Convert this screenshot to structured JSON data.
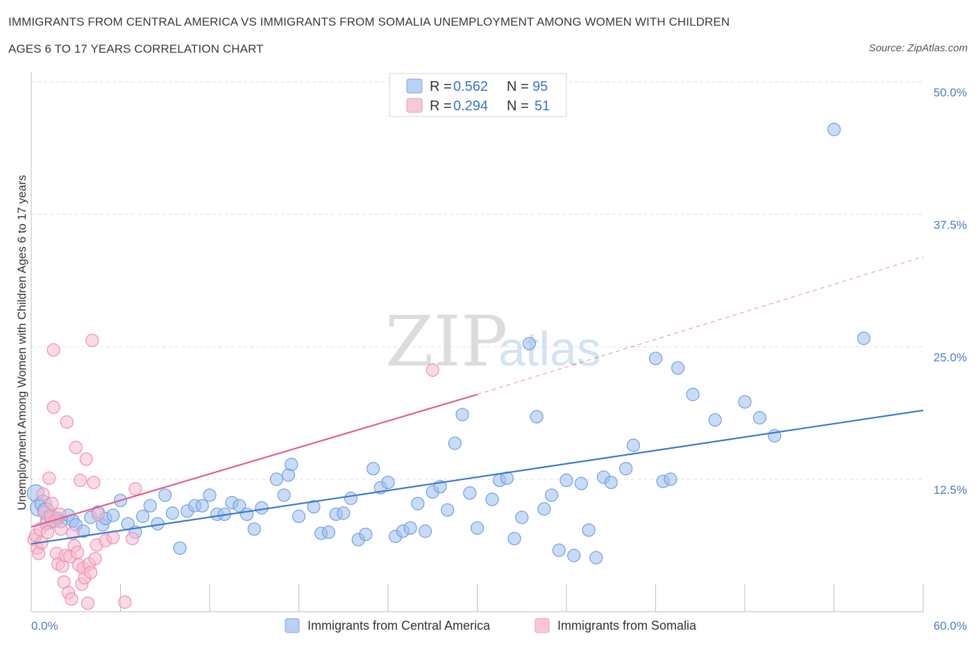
{
  "title_line1": "IMMIGRANTS FROM CENTRAL AMERICA VS IMMIGRANTS FROM SOMALIA UNEMPLOYMENT AMONG WOMEN WITH CHILDREN",
  "title_line2": "AGES 6 TO 17 YEARS CORRELATION CHART",
  "source": "Source: ZipAtlas.com",
  "watermark": {
    "zip": "ZIP",
    "atlas": "atlas"
  },
  "legend": {
    "rows": [
      {
        "r_label": "R =",
        "r_value": "0.562",
        "n_label": "N =",
        "n_value": "95"
      },
      {
        "r_label": "R =",
        "r_value": "0.294",
        "n_label": "N =",
        "n_value": "51"
      }
    ]
  },
  "chart_data": {
    "type": "scatter",
    "title": "IMMIGRANTS FROM CENTRAL AMERICA VS IMMIGRANTS FROM SOMALIA UNEMPLOYMENT AMONG WOMEN WITH CHILDREN AGES 6 TO 17 YEARS CORRELATION CHART",
    "xlabel": "",
    "ylabel": "Unemployment Among Women with Children Ages 6 to 17 years",
    "xlim": [
      0,
      60
    ],
    "ylim": [
      0,
      50
    ],
    "x_tick_labels": [
      {
        "value": 0,
        "label": "0.0%"
      },
      {
        "value": 60,
        "label": "60.0%"
      }
    ],
    "y_tick_labels": [
      {
        "value": 12.5,
        "label": "12.5%"
      },
      {
        "value": 25,
        "label": "25.0%"
      },
      {
        "value": 37.5,
        "label": "37.5%"
      },
      {
        "value": 50,
        "label": "50.0%"
      }
    ],
    "grid": "horizontal dashed",
    "legend_position": "top-center",
    "series": [
      {
        "name": "Immigrants from Central America",
        "color": "#9dbff0",
        "edge_color": "#6f9ee0",
        "line_color": "#3b78d0",
        "R": 0.562,
        "N": 95,
        "trend": {
          "x0": 0,
          "y0": 6.4,
          "x1": 60,
          "y1": 19.0
        },
        "points": [
          [
            0.3,
            11.2
          ],
          [
            0.5,
            9.8
          ],
          [
            0.8,
            10.2
          ],
          [
            1.0,
            9.5
          ],
          [
            1.2,
            8.6
          ],
          [
            1.5,
            8.7
          ],
          [
            1.8,
            8.8
          ],
          [
            2.0,
            8.5
          ],
          [
            2.5,
            9.1
          ],
          [
            2.8,
            8.6
          ],
          [
            3.0,
            8.2
          ],
          [
            3.5,
            7.6
          ],
          [
            4.0,
            8.9
          ],
          [
            4.5,
            9.4
          ],
          [
            4.8,
            8.2
          ],
          [
            5.0,
            8.8
          ],
          [
            5.5,
            9.1
          ],
          [
            6.0,
            10.5
          ],
          [
            6.5,
            8.3
          ],
          [
            7.0,
            7.5
          ],
          [
            7.5,
            9.0
          ],
          [
            8.0,
            10.0
          ],
          [
            8.5,
            8.3
          ],
          [
            9.0,
            11.0
          ],
          [
            9.5,
            9.3
          ],
          [
            10.0,
            6.0
          ],
          [
            10.5,
            9.5
          ],
          [
            11.0,
            10.0
          ],
          [
            11.5,
            10.0
          ],
          [
            12.0,
            11.0
          ],
          [
            12.5,
            9.2
          ],
          [
            13.0,
            9.2
          ],
          [
            13.5,
            10.3
          ],
          [
            14.0,
            10.0
          ],
          [
            14.5,
            9.2
          ],
          [
            15.0,
            7.8
          ],
          [
            15.5,
            9.8
          ],
          [
            16.5,
            12.5
          ],
          [
            17.0,
            11.0
          ],
          [
            17.3,
            12.9
          ],
          [
            17.5,
            13.9
          ],
          [
            18.0,
            9.0
          ],
          [
            19.0,
            9.9
          ],
          [
            19.5,
            7.4
          ],
          [
            20.0,
            7.5
          ],
          [
            20.5,
            9.2
          ],
          [
            21.0,
            9.3
          ],
          [
            21.5,
            10.7
          ],
          [
            22.0,
            6.8
          ],
          [
            22.5,
            7.3
          ],
          [
            23.0,
            13.5
          ],
          [
            23.5,
            11.7
          ],
          [
            24.0,
            12.2
          ],
          [
            24.5,
            7.1
          ],
          [
            25.0,
            7.6
          ],
          [
            25.5,
            7.9
          ],
          [
            26.0,
            10.2
          ],
          [
            26.5,
            7.6
          ],
          [
            27.0,
            11.3
          ],
          [
            27.5,
            11.8
          ],
          [
            28.0,
            9.6
          ],
          [
            28.5,
            15.9
          ],
          [
            29.0,
            18.6
          ],
          [
            29.5,
            11.2
          ],
          [
            30.0,
            7.9
          ],
          [
            31.0,
            10.6
          ],
          [
            31.5,
            12.4
          ],
          [
            32.0,
            12.6
          ],
          [
            32.5,
            6.9
          ],
          [
            33.0,
            8.9
          ],
          [
            33.5,
            25.3
          ],
          [
            34.0,
            18.4
          ],
          [
            34.5,
            9.7
          ],
          [
            35.0,
            11.0
          ],
          [
            35.5,
            5.8
          ],
          [
            36.0,
            12.4
          ],
          [
            36.5,
            5.3
          ],
          [
            37.0,
            12.1
          ],
          [
            37.5,
            7.7
          ],
          [
            38.0,
            5.1
          ],
          [
            38.5,
            12.7
          ],
          [
            39.0,
            12.2
          ],
          [
            40.0,
            13.5
          ],
          [
            40.5,
            15.7
          ],
          [
            42.0,
            23.9
          ],
          [
            42.5,
            12.3
          ],
          [
            43.0,
            12.5
          ],
          [
            43.5,
            23.0
          ],
          [
            44.5,
            20.5
          ],
          [
            46.0,
            18.1
          ],
          [
            48.0,
            19.8
          ],
          [
            49.0,
            18.3
          ],
          [
            50.0,
            16.6
          ],
          [
            54.0,
            45.5
          ],
          [
            56.0,
            25.8
          ]
        ]
      },
      {
        "name": "Immigrants from Somalia",
        "color": "#f6bccd",
        "edge_color": "#ee8fae",
        "line_color": "#e0608a",
        "R": 0.294,
        "N": 51,
        "trend": {
          "x0": 0,
          "y0": 8.0,
          "x1": 30,
          "y1": 20.5
        },
        "trend_extension": {
          "x0": 30,
          "y0": 20.5,
          "x1": 60,
          "y1": 33.5
        },
        "points": [
          [
            0.2,
            6.8
          ],
          [
            0.3,
            7.2
          ],
          [
            0.4,
            6.0
          ],
          [
            0.5,
            5.5
          ],
          [
            0.6,
            7.8
          ],
          [
            0.7,
            6.5
          ],
          [
            0.8,
            11.1
          ],
          [
            0.9,
            9.4
          ],
          [
            1.0,
            8.3
          ],
          [
            1.1,
            7.5
          ],
          [
            1.2,
            12.6
          ],
          [
            1.3,
            9.0
          ],
          [
            1.4,
            10.2
          ],
          [
            1.5,
            24.7
          ],
          [
            1.5,
            19.3
          ],
          [
            1.6,
            8.5
          ],
          [
            1.7,
            5.5
          ],
          [
            1.8,
            4.5
          ],
          [
            1.9,
            9.2
          ],
          [
            2.0,
            7.8
          ],
          [
            2.1,
            4.3
          ],
          [
            2.2,
            2.8
          ],
          [
            2.3,
            5.3
          ],
          [
            2.4,
            17.9
          ],
          [
            2.5,
            1.8
          ],
          [
            2.6,
            5.2
          ],
          [
            2.7,
            1.2
          ],
          [
            2.8,
            7.4
          ],
          [
            2.9,
            6.2
          ],
          [
            3.0,
            15.5
          ],
          [
            3.1,
            5.6
          ],
          [
            3.2,
            4.4
          ],
          [
            3.3,
            12.4
          ],
          [
            3.4,
            2.6
          ],
          [
            3.5,
            4.1
          ],
          [
            3.6,
            3.2
          ],
          [
            3.7,
            14.4
          ],
          [
            3.8,
            0.8
          ],
          [
            3.9,
            4.5
          ],
          [
            4.0,
            3.7
          ],
          [
            4.1,
            25.6
          ],
          [
            4.2,
            12.2
          ],
          [
            4.3,
            5.0
          ],
          [
            4.4,
            6.3
          ],
          [
            4.5,
            9.2
          ],
          [
            5.0,
            6.7
          ],
          [
            5.5,
            7.0
          ],
          [
            6.3,
            0.9
          ],
          [
            6.8,
            6.9
          ],
          [
            7.0,
            11.6
          ],
          [
            27.0,
            22.8
          ]
        ]
      }
    ]
  },
  "bottom_legend": [
    {
      "label": "Immigrants from Central America"
    },
    {
      "label": "Immigrants from Somalia"
    }
  ]
}
